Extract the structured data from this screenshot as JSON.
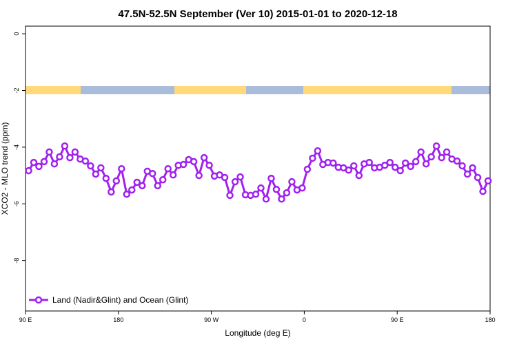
{
  "chart_data": {
    "type": "line",
    "title": "47.5N-52.5N September (Ver 10)   2015-01-01 to 2020-12-18",
    "x_label": "Longitude (deg E)",
    "y_label": "XCO2 - MLO trend (ppm)",
    "x": [
      93,
      98,
      103,
      108,
      113,
      118,
      123,
      128,
      133,
      138,
      143,
      148,
      153,
      158,
      163,
      168,
      173,
      178,
      183,
      188,
      193,
      198,
      203,
      208,
      213,
      218,
      223,
      228,
      233,
      238,
      243,
      248,
      253,
      258,
      263,
      268,
      273,
      278,
      283,
      288,
      293,
      298,
      303,
      308,
      313,
      318,
      323,
      328,
      333,
      338,
      343,
      348,
      353,
      358,
      363,
      368,
      373,
      378,
      383,
      388,
      393,
      398,
      403,
      408,
      413,
      418,
      423,
      428,
      433,
      438,
      443,
      448,
      453,
      458,
      463,
      468,
      473,
      478,
      483,
      488,
      493,
      498,
      503,
      508,
      513,
      518,
      523,
      528,
      533,
      538
    ],
    "series": [
      {
        "name": "Land (Nadir&Glint) and Ocean (Glint)",
        "color": "#a020f0",
        "values": [
          -4.83,
          -4.54,
          -4.68,
          -4.51,
          -4.17,
          -4.59,
          -4.34,
          -3.96,
          -4.37,
          -4.17,
          -4.42,
          -4.49,
          -4.66,
          -4.95,
          -4.73,
          -5.1,
          -5.58,
          -5.19,
          -4.76,
          -5.66,
          -5.51,
          -5.24,
          -5.36,
          -4.85,
          -4.93,
          -5.36,
          -5.15,
          -4.76,
          -4.98,
          -4.64,
          -4.61,
          -4.44,
          -4.51,
          -5.0,
          -4.37,
          -4.64,
          -5.02,
          -4.98,
          -5.07,
          -5.7,
          -5.22,
          -5.05,
          -5.68,
          -5.7,
          -5.66,
          -5.44,
          -5.83,
          -5.1,
          -5.49,
          -5.83,
          -5.61,
          -5.22,
          -5.51,
          -5.44,
          -4.78,
          -4.39,
          -4.13,
          -4.61,
          -4.54,
          -4.56,
          -4.71,
          -4.73,
          -4.81,
          -4.66,
          -5.0,
          -4.59,
          -4.54,
          -4.73,
          -4.71,
          -4.64,
          -4.54,
          -4.71,
          -4.83,
          -4.56,
          -4.68,
          -4.51,
          -4.17,
          -4.59,
          -4.34,
          -3.96,
          -4.37,
          -4.17,
          -4.42,
          -4.49,
          -4.66,
          -4.95,
          -4.73,
          -5.07,
          -5.56,
          -5.19
        ]
      }
    ],
    "xlim": [
      90,
      540
    ],
    "xticks": [
      {
        "value": 90,
        "label": "90 E"
      },
      {
        "value": 180,
        "label": "180"
      },
      {
        "value": 270,
        "label": "90 W"
      },
      {
        "value": 360,
        "label": "0"
      },
      {
        "value": 450,
        "label": "90 E"
      },
      {
        "value": 540,
        "label": "180"
      }
    ],
    "ylim": [
      -9.78,
      0.27
    ],
    "yticks": [
      0,
      -2,
      -4,
      -6,
      -8
    ],
    "legend": "bottom-left"
  }
}
